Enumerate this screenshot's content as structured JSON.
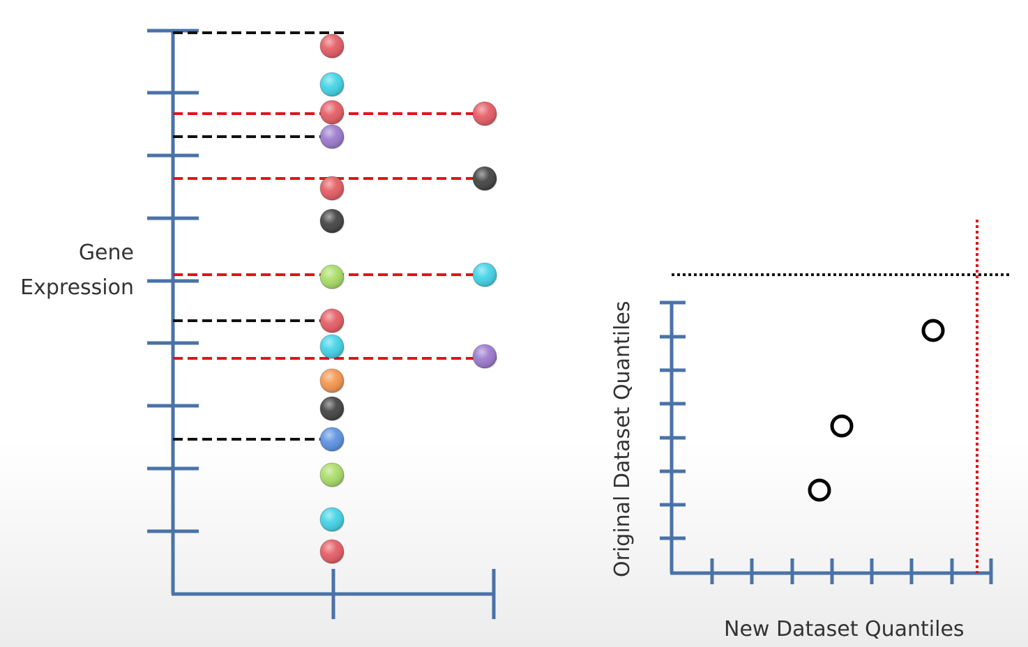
{
  "labels": {
    "gene_expression_line1": "Gene",
    "gene_expression_line2": "Expression",
    "qq_x_axis": "New Dataset Quantiles",
    "qq_y_axis": "Original Dataset Quantiles"
  },
  "colors": {
    "axis": "#4a72a8",
    "guide_black": "#111111",
    "guide_red": "#e0141e",
    "red": "#e45a62",
    "cyan": "#3fd2e6",
    "purple": "#9a78cc",
    "black": "#404040",
    "green": "#a8dc64",
    "orange": "#f4944c",
    "blue": "#5a90e0"
  },
  "original_dataset_points": [
    {
      "color": "red"
    },
    {
      "color": "cyan"
    },
    {
      "color": "red"
    },
    {
      "color": "purple"
    },
    {
      "color": "red"
    },
    {
      "color": "black"
    },
    {
      "color": "green"
    },
    {
      "color": "red"
    },
    {
      "color": "cyan"
    },
    {
      "color": "orange"
    },
    {
      "color": "black"
    },
    {
      "color": "blue"
    },
    {
      "color": "green"
    },
    {
      "color": "cyan"
    },
    {
      "color": "red"
    }
  ],
  "new_dataset_points": [
    {
      "color": "red"
    },
    {
      "color": "black"
    },
    {
      "color": "cyan"
    },
    {
      "color": "purple"
    }
  ],
  "guide_lines": [
    {
      "style": "black"
    },
    {
      "style": "red"
    },
    {
      "style": "black"
    },
    {
      "style": "red"
    },
    {
      "style": "red"
    },
    {
      "style": "black"
    },
    {
      "style": "red"
    },
    {
      "style": "black"
    }
  ],
  "qq_plot_points": [
    {
      "description": "open circle"
    },
    {
      "description": "open circle"
    },
    {
      "description": "open circle"
    }
  ]
}
